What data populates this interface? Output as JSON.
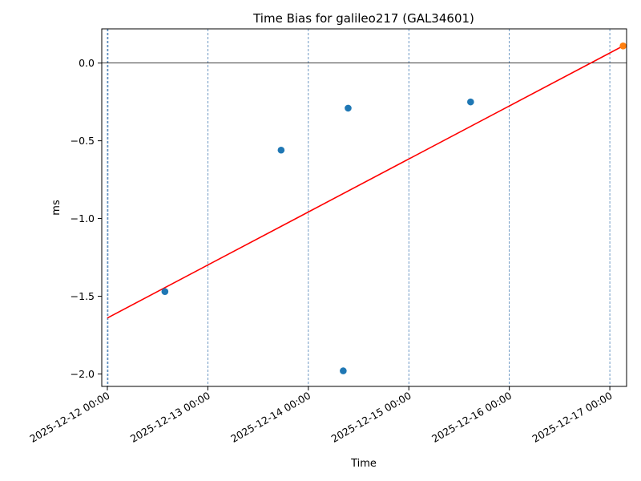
{
  "chart_data": {
    "type": "scatter",
    "title": "Time Bias for galileo217 (GAL34601)",
    "xlabel": "Time",
    "ylabel": "ms",
    "x_ticks": [
      {
        "value": "2025-12-12 00:00",
        "label": "2025-12-12 00:00"
      },
      {
        "value": "2025-12-13 00:00",
        "label": "2025-12-13 00:00"
      },
      {
        "value": "2025-12-14 00:00",
        "label": "2025-12-14 00:00"
      },
      {
        "value": "2025-12-15 00:00",
        "label": "2025-12-15 00:00"
      },
      {
        "value": "2025-12-16 00:00",
        "label": "2025-12-16 00:00"
      },
      {
        "value": "2025-12-17 00:00",
        "label": "2025-12-17 00:00"
      }
    ],
    "y_ticks": [
      {
        "value": 0.0,
        "label": "0.0"
      },
      {
        "value": -0.5,
        "label": "−0.5"
      },
      {
        "value": -1.0,
        "label": "−1.0"
      },
      {
        "value": -1.5,
        "label": "−1.5"
      },
      {
        "value": -2.0,
        "label": "−2.0"
      }
    ],
    "xlim": [
      "2025-12-11 22:40",
      "2025-12-17 04:00"
    ],
    "ylim": [
      -2.08,
      0.22
    ],
    "grid": "vertical dashed lines at each day",
    "reference_lines": [
      {
        "orientation": "vertical",
        "x": "2025-12-12 00:10",
        "color": "#4a7fb5",
        "style": "dashed"
      },
      {
        "orientation": "horizontal",
        "y": 0.0,
        "color": "#000000",
        "style": "solid"
      }
    ],
    "series": [
      {
        "kind": "points",
        "color": "#1f77b4",
        "points": [
          {
            "x": "2025-12-12 13:45",
            "y": -1.47
          },
          {
            "x": "2025-12-13 17:30",
            "y": -0.56
          },
          {
            "x": "2025-12-14 08:20",
            "y": -1.98
          },
          {
            "x": "2025-12-14 09:30",
            "y": -0.29
          },
          {
            "x": "2025-12-15 14:45",
            "y": -0.25
          }
        ]
      },
      {
        "kind": "points",
        "color": "#ff7f0e",
        "points": [
          {
            "x": "2025-12-17 03:10",
            "y": 0.11
          }
        ]
      },
      {
        "kind": "line",
        "color": "#ff0000",
        "points": [
          {
            "x": "2025-12-12 00:00",
            "y": -1.64
          },
          {
            "x": "2025-12-17 03:10",
            "y": 0.11
          }
        ]
      }
    ]
  }
}
